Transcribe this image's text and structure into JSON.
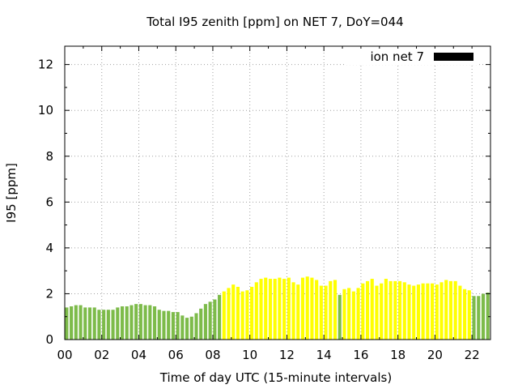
{
  "chart_data": {
    "type": "bar",
    "title": "Total I95 zenith [ppm] on NET 7, DoY=044",
    "xlabel": "Time of day UTC (15-minute intervals)",
    "ylabel": "I95 [ppm]",
    "xlim": [
      0,
      23
    ],
    "ylim": [
      0,
      12.8
    ],
    "xticks": [
      "00",
      "02",
      "04",
      "06",
      "08",
      "10",
      "12",
      "14",
      "16",
      "18",
      "20",
      "22"
    ],
    "xtick_values": [
      0,
      2,
      4,
      6,
      8,
      10,
      12,
      14,
      16,
      18,
      20,
      22
    ],
    "yticks": [
      "0",
      "2",
      "4",
      "6",
      "8",
      "10",
      "12"
    ],
    "ytick_values": [
      0,
      2,
      4,
      6,
      8,
      10,
      12
    ],
    "grid": true,
    "legend": {
      "label": "ion net 7",
      "color": "#000000",
      "placement": "top-right"
    },
    "colors": {
      "green": "#7dbb4a",
      "yellow": "#ffff00"
    },
    "interval_hours": 0.25,
    "series": [
      {
        "name": "ion net 7",
        "x_start_hours": 0,
        "values": [
          1.4,
          1.45,
          1.5,
          1.5,
          1.4,
          1.4,
          1.4,
          1.3,
          1.3,
          1.3,
          1.3,
          1.4,
          1.45,
          1.45,
          1.5,
          1.55,
          1.55,
          1.5,
          1.5,
          1.45,
          1.3,
          1.25,
          1.25,
          1.2,
          1.2,
          1.05,
          0.95,
          1.0,
          1.15,
          1.35,
          1.55,
          1.65,
          1.75,
          1.95,
          2.1,
          2.25,
          2.4,
          2.3,
          2.1,
          2.15,
          2.3,
          2.5,
          2.65,
          2.7,
          2.65,
          2.65,
          2.7,
          2.65,
          2.7,
          2.5,
          2.4,
          2.7,
          2.75,
          2.7,
          2.6,
          2.35,
          2.35,
          2.55,
          2.6,
          1.95,
          2.2,
          2.25,
          2.1,
          2.25,
          2.45,
          2.55,
          2.65,
          2.35,
          2.45,
          2.65,
          2.55,
          2.55,
          2.55,
          2.5,
          2.4,
          2.35,
          2.4,
          2.45,
          2.45,
          2.45,
          2.4,
          2.5,
          2.6,
          2.55,
          2.55,
          2.35,
          2.2,
          2.15,
          1.9,
          1.9,
          2.0,
          2.05
        ],
        "colors": [
          "green",
          "green",
          "green",
          "green",
          "green",
          "green",
          "green",
          "green",
          "green",
          "green",
          "green",
          "green",
          "green",
          "green",
          "green",
          "green",
          "green",
          "green",
          "green",
          "green",
          "green",
          "green",
          "green",
          "green",
          "green",
          "green",
          "green",
          "green",
          "green",
          "green",
          "green",
          "green",
          "green",
          "green",
          "yellow",
          "yellow",
          "yellow",
          "yellow",
          "yellow",
          "yellow",
          "yellow",
          "yellow",
          "yellow",
          "yellow",
          "yellow",
          "yellow",
          "yellow",
          "yellow",
          "yellow",
          "yellow",
          "yellow",
          "yellow",
          "yellow",
          "yellow",
          "yellow",
          "yellow",
          "yellow",
          "yellow",
          "yellow",
          "green",
          "yellow",
          "yellow",
          "yellow",
          "yellow",
          "yellow",
          "yellow",
          "yellow",
          "yellow",
          "yellow",
          "yellow",
          "yellow",
          "yellow",
          "yellow",
          "yellow",
          "yellow",
          "yellow",
          "yellow",
          "yellow",
          "yellow",
          "yellow",
          "yellow",
          "yellow",
          "yellow",
          "yellow",
          "yellow",
          "yellow",
          "yellow",
          "yellow",
          "green",
          "green",
          "green",
          "green"
        ]
      }
    ]
  }
}
